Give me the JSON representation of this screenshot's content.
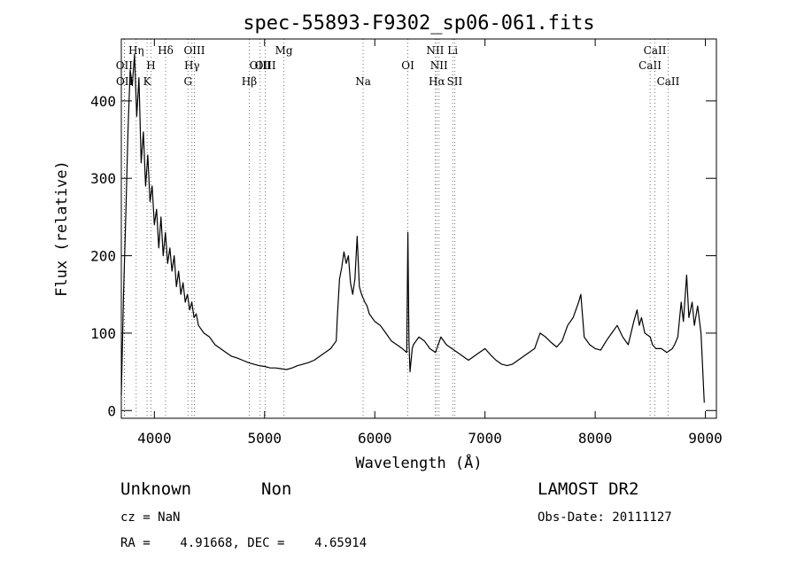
{
  "chart_data": {
    "type": "line",
    "title": "spec-55893-F9302_sp06-061.fits",
    "xlabel": "Wavelength (Å)",
    "ylabel": "Flux (relative)",
    "xlim": [
      3700,
      9100
    ],
    "ylim": [
      -10,
      480
    ],
    "xticks": [
      4000,
      5000,
      6000,
      7000,
      8000,
      9000
    ],
    "yticks": [
      0,
      100,
      200,
      300,
      400
    ],
    "grid": false,
    "series": [
      {
        "x": [
          3700,
          3720,
          3740,
          3760,
          3780,
          3800,
          3820,
          3840,
          3860,
          3880,
          3900,
          3920,
          3940,
          3960,
          3980,
          4000,
          4020,
          4040,
          4060,
          4080,
          4100,
          4120,
          4140,
          4160,
          4180,
          4200,
          4220,
          4240,
          4260,
          4280,
          4300,
          4320,
          4340,
          4360,
          4380,
          4400,
          4450,
          4500,
          4550,
          4600,
          4650,
          4700,
          4750,
          4800,
          4850,
          4900,
          4950,
          5000,
          5050,
          5100,
          5150,
          5200,
          5250,
          5300,
          5350,
          5400,
          5450,
          5500,
          5550,
          5600,
          5650,
          5660,
          5680,
          5700,
          5720,
          5740,
          5760,
          5780,
          5800,
          5820,
          5840,
          5860,
          5880,
          5895,
          5910,
          5930,
          5950,
          6000,
          6050,
          6100,
          6150,
          6200,
          6250,
          6290,
          6300,
          6310,
          6320,
          6340,
          6350,
          6400,
          6450,
          6500,
          6550,
          6600,
          6650,
          6700,
          6750,
          6800,
          6850,
          6900,
          6950,
          7000,
          7050,
          7100,
          7150,
          7200,
          7250,
          7300,
          7350,
          7400,
          7450,
          7500,
          7550,
          7600,
          7650,
          7700,
          7750,
          7800,
          7850,
          7870,
          7900,
          7950,
          8000,
          8050,
          8100,
          8150,
          8200,
          8250,
          8300,
          8350,
          8380,
          8400,
          8420,
          8450,
          8500,
          8520,
          8550,
          8600,
          8650,
          8700,
          8720,
          8750,
          8780,
          8800,
          8830,
          8850,
          8880,
          8900,
          8930,
          8960,
          8990
        ],
        "y": [
          20,
          150,
          250,
          360,
          440,
          420,
          460,
          380,
          430,
          320,
          360,
          290,
          330,
          270,
          290,
          240,
          260,
          210,
          250,
          200,
          230,
          190,
          210,
          180,
          200,
          160,
          180,
          150,
          165,
          140,
          150,
          130,
          140,
          120,
          125,
          110,
          100,
          95,
          85,
          80,
          75,
          70,
          68,
          65,
          62,
          60,
          58,
          57,
          55,
          55,
          54,
          53,
          55,
          58,
          60,
          62,
          65,
          70,
          75,
          80,
          90,
          120,
          170,
          185,
          205,
          190,
          200,
          165,
          150,
          170,
          225,
          160,
          150,
          145,
          140,
          135,
          125,
          115,
          110,
          100,
          90,
          85,
          80,
          75,
          230,
          90,
          50,
          80,
          85,
          95,
          90,
          80,
          75,
          95,
          85,
          80,
          75,
          70,
          65,
          70,
          75,
          80,
          72,
          65,
          60,
          58,
          60,
          65,
          70,
          75,
          80,
          100,
          95,
          88,
          82,
          90,
          110,
          120,
          140,
          150,
          95,
          85,
          80,
          78,
          90,
          100,
          110,
          95,
          85,
          115,
          130,
          110,
          120,
          100,
          95,
          85,
          80,
          80,
          75,
          80,
          85,
          95,
          140,
          115,
          175,
          120,
          140,
          110,
          135,
          100,
          10
        ]
      }
    ],
    "line_markers": [
      {
        "label": "OII",
        "x": 3727,
        "row": 2
      },
      {
        "label": "OII",
        "x": 3729,
        "row": 3
      },
      {
        "label": "Hη",
        "x": 3835,
        "row": 1
      },
      {
        "label": "K",
        "x": 3934,
        "row": 3
      },
      {
        "label": "H",
        "x": 3969,
        "row": 2
      },
      {
        "label": "Hδ",
        "x": 4102,
        "row": 1
      },
      {
        "label": "G",
        "x": 4305,
        "row": 3
      },
      {
        "label": "Hγ",
        "x": 4341,
        "row": 2
      },
      {
        "label": "OIII",
        "x": 4363,
        "row": 1
      },
      {
        "label": "Hβ",
        "x": 4861,
        "row": 3
      },
      {
        "label": "OIII",
        "x": 4959,
        "row": 2
      },
      {
        "label": "OIII",
        "x": 5007,
        "row": 2
      },
      {
        "label": "Mg",
        "x": 5175,
        "row": 1
      },
      {
        "label": "Na",
        "x": 5894,
        "row": 3
      },
      {
        "label": "OI",
        "x": 6300,
        "row": 2
      },
      {
        "label": "NII",
        "x": 6548,
        "row": 1
      },
      {
        "label": "Hα",
        "x": 6563,
        "row": 3
      },
      {
        "label": "NII",
        "x": 6583,
        "row": 2
      },
      {
        "label": "Li",
        "x": 6707,
        "row": 1
      },
      {
        "label": "SII",
        "x": 6725,
        "row": 3
      },
      {
        "label": "CaII",
        "x": 8498,
        "row": 2
      },
      {
        "label": "CaII",
        "x": 8542,
        "row": 1
      },
      {
        "label": "CaII",
        "x": 8662,
        "row": 3
      }
    ]
  },
  "info": {
    "object_class": "Unknown",
    "subclass": "Non",
    "survey": "LAMOST DR2",
    "cz": "cz = NaN",
    "obs_date": "Obs-Date: 20111127",
    "radec": "RA =    4.91668, DEC =    4.65914"
  }
}
